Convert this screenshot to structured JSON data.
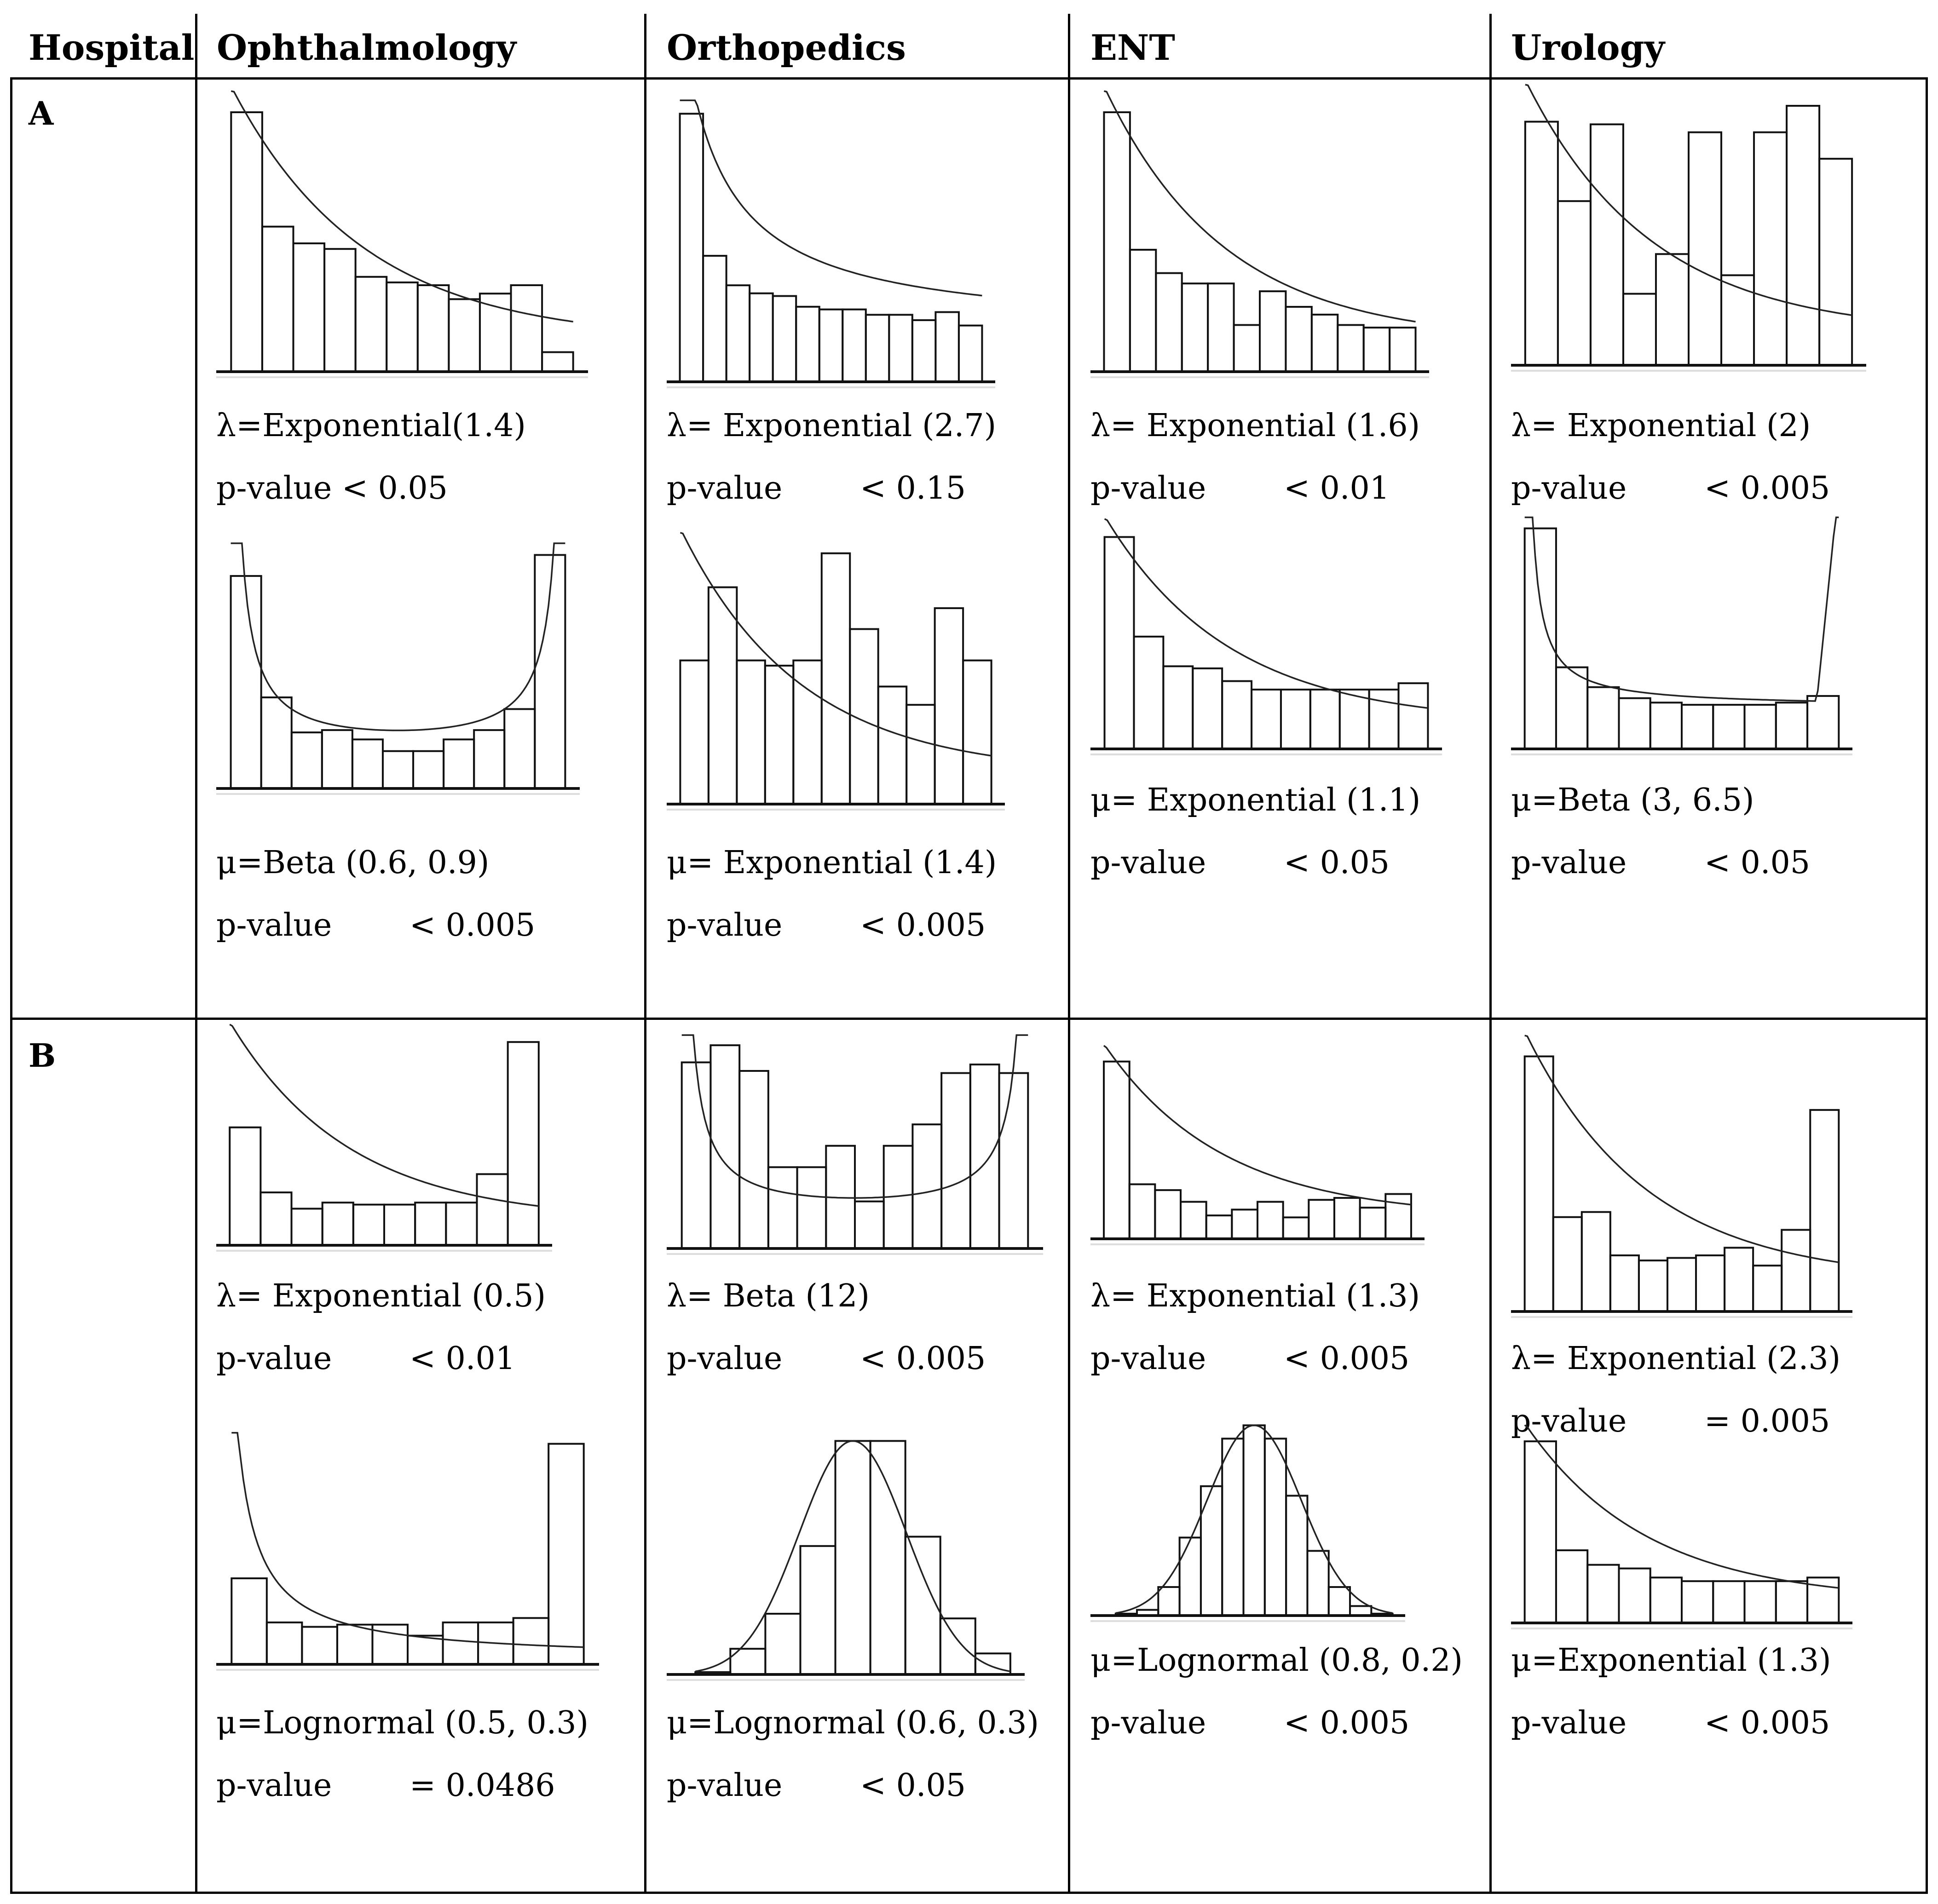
{
  "table": {
    "headers": [
      "Hospital",
      "Ophthalmology",
      "Orthopedics",
      "ENT",
      "Urology"
    ],
    "rows": [
      "A",
      "B"
    ]
  },
  "chart_data": [
    {
      "id": "A-oph-1",
      "row": "A",
      "department": "Ophthalmology",
      "type": "bar",
      "bars": [
        9.3,
        5.2,
        4.6,
        4.4,
        3.4,
        3.2,
        3.1,
        2.6,
        2.8,
        3.1,
        0.7
      ],
      "curve": "exponential-decay",
      "label": "λ=Exponential(1.4)",
      "pvalue_label": "p-value < 0.05",
      "pvalue": ""
    },
    {
      "id": "A-oph-2",
      "row": "A",
      "department": "Ophthalmology",
      "type": "bar",
      "bars": [
        9.1,
        3.9,
        2.4,
        2.5,
        2.1,
        1.6,
        1.6,
        2.1,
        2.5,
        3.4,
        10.0
      ],
      "curve": "u-shape",
      "label": "μ=Beta (0.6, 0.9)",
      "pvalue_label": "p-value",
      "pvalue": "< 0.005"
    },
    {
      "id": "A-ort-1",
      "row": "A",
      "department": "Orthopedics",
      "type": "bar",
      "bars": [
        10.0,
        4.7,
        3.6,
        3.3,
        3.2,
        2.8,
        2.7,
        2.7,
        2.5,
        2.5,
        2.3,
        2.6,
        2.1
      ],
      "curve": "exponential-decay-steep",
      "label": "λ= Exponential (2.7)",
      "pvalue_label": "p-value",
      "pvalue": "< 0.15"
    },
    {
      "id": "A-ort-2",
      "row": "A",
      "department": "Orthopedics",
      "type": "bar",
      "bars": [
        5.5,
        8.3,
        5.5,
        5.3,
        5.5,
        9.6,
        6.7,
        4.5,
        3.8,
        7.5,
        5.5
      ],
      "curve": "exponential-decay",
      "label": "μ= Exponential (1.4)",
      "pvalue_label": "p-value",
      "pvalue": "< 0.005"
    },
    {
      "id": "A-ent-1",
      "row": "A",
      "department": "ENT",
      "type": "bar",
      "bars": [
        10.0,
        4.7,
        3.8,
        3.4,
        3.4,
        1.8,
        3.1,
        2.5,
        2.2,
        1.8,
        1.7,
        1.7
      ],
      "curve": "exponential-decay",
      "label": "λ= Exponential (1.6)",
      "pvalue_label": "p-value",
      "pvalue": "< 0.01"
    },
    {
      "id": "A-ent-2",
      "row": "A",
      "department": "ENT",
      "type": "bar",
      "bars": [
        10.0,
        5.3,
        3.9,
        3.8,
        3.2,
        2.8,
        2.8,
        2.8,
        2.8,
        2.8,
        3.1
      ],
      "curve": "exponential-decay",
      "label": "μ= Exponential (1.1)",
      "pvalue_label": "p-value",
      "pvalue": "< 0.05"
    },
    {
      "id": "A-uro-1",
      "row": "A",
      "department": "Urology",
      "type": "bar",
      "bars": [
        9.2,
        6.2,
        9.1,
        2.7,
        4.2,
        8.8,
        3.4,
        8.8,
        9.8,
        7.8
      ],
      "curve": "exponential-decay",
      "label": "λ= Exponential (2)",
      "pvalue_label": "p-value",
      "pvalue": "< 0.005"
    },
    {
      "id": "A-uro-2",
      "row": "A",
      "department": "Urology",
      "type": "bar",
      "bars": [
        10.0,
        3.7,
        2.8,
        2.3,
        2.1,
        2.0,
        2.0,
        2.0,
        2.1,
        2.4
      ],
      "curve": "u-shape-left",
      "label": "μ=Beta (3, 6.5)",
      "pvalue_label": "p-value",
      "pvalue": "< 0.05"
    },
    {
      "id": "B-oph-1",
      "row": "B",
      "department": "Ophthalmology",
      "type": "bar",
      "bars": [
        5.8,
        2.6,
        1.8,
        2.1,
        2.0,
        2.0,
        2.1,
        2.1,
        3.5,
        10.0
      ],
      "curve": "exponential-decay",
      "label": "λ= Exponential (0.5)",
      "pvalue_label": "p-value",
      "pvalue": "< 0.01"
    },
    {
      "id": "B-oph-2",
      "row": "B",
      "department": "Ophthalmology",
      "type": "bar",
      "bars": [
        3.9,
        1.9,
        1.7,
        1.8,
        1.8,
        1.3,
        1.9,
        1.9,
        2.1,
        10.0
      ],
      "curve": "lognormal-decay",
      "label": "μ=Lognormal (0.5, 0.3)",
      "pvalue_label": "p-value",
      "pvalue": "= 0.0486"
    },
    {
      "id": "B-ort-1",
      "row": "B",
      "department": "Orthopedics",
      "type": "bar",
      "bars": [
        8.7,
        9.5,
        8.3,
        3.8,
        3.8,
        4.8,
        2.2,
        4.8,
        5.8,
        8.2,
        8.6,
        8.2
      ],
      "curve": "u-shape",
      "label": "λ= Beta (12)",
      "pvalue_label": "p-value",
      "pvalue": "< 0.005"
    },
    {
      "id": "B-ort-2",
      "row": "B",
      "department": "Orthopedics",
      "type": "bar",
      "bars": [
        0.1,
        1.1,
        2.6,
        5.5,
        10.0,
        10.0,
        5.9,
        2.4,
        0.9
      ],
      "curve": "bell",
      "label": "μ=Lognormal (0.6, 0.3)",
      "pvalue_label": "p-value",
      "pvalue": "< 0.05"
    },
    {
      "id": "B-ent-1",
      "row": "B",
      "department": "ENT",
      "type": "bar",
      "bars": [
        9.1,
        2.8,
        2.5,
        1.9,
        1.2,
        1.5,
        1.9,
        1.1,
        2.0,
        2.1,
        1.6,
        2.3
      ],
      "curve": "exponential-decay",
      "label": "λ= Exponential (1.3)",
      "pvalue_label": "p-value",
      "pvalue": "< 0.005"
    },
    {
      "id": "B-ent-2",
      "row": "B",
      "department": "ENT",
      "type": "bar",
      "bars": [
        0.1,
        0.3,
        1.5,
        4.1,
        6.8,
        9.3,
        10.0,
        9.3,
        6.3,
        3.4,
        1.5,
        0.5,
        0.1
      ],
      "curve": "bell",
      "label": "μ=Lognormal (0.8, 0.2)",
      "pvalue_label": "p-value",
      "pvalue": "< 0.005"
    },
    {
      "id": "B-uro-1",
      "row": "B",
      "department": "Urology",
      "type": "bar",
      "bars": [
        10.0,
        3.7,
        3.9,
        2.2,
        2.0,
        2.1,
        2.2,
        2.5,
        1.8,
        3.2,
        7.9
      ],
      "curve": "exponential-decay",
      "label": "λ= Exponential (2.3)",
      "pvalue_label": "p-value",
      "pvalue": "= 0.005"
    },
    {
      "id": "B-uro-2",
      "row": "B",
      "department": "Urology",
      "type": "bar",
      "bars": [
        10.0,
        4.0,
        3.2,
        3.0,
        2.5,
        2.3,
        2.3,
        2.3,
        2.3,
        2.5
      ],
      "curve": "exponential-decay",
      "label": "μ=Exponential (1.3)",
      "pvalue_label": "p-value",
      "pvalue": "< 0.005"
    }
  ]
}
